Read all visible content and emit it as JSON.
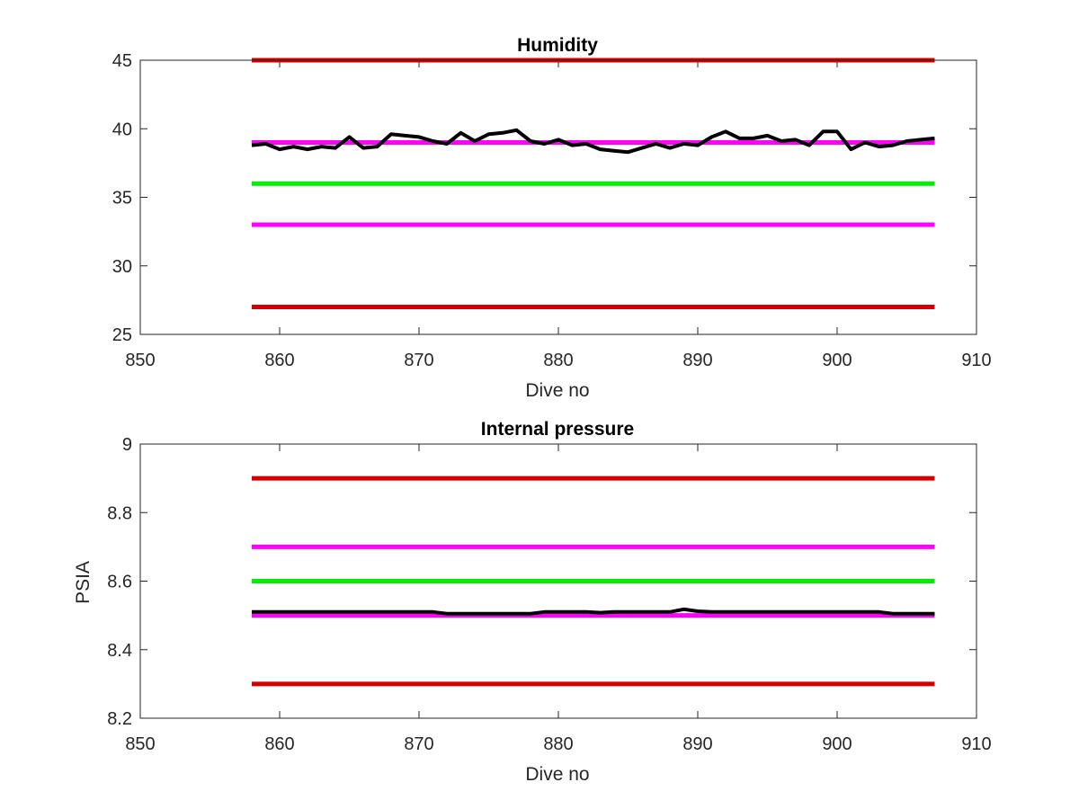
{
  "colors": {
    "limit_red": "#d40000",
    "limit_magenta": "#ff00ff",
    "target_green": "#00ee00",
    "data_black": "#000000",
    "axes": "#262626"
  },
  "chart_data": [
    {
      "type": "line",
      "title": "Humidity",
      "xlabel": "Dive no",
      "ylabel": "",
      "xlim": [
        850,
        910
      ],
      "ylim": [
        25,
        45
      ],
      "xticks": [
        850,
        860,
        870,
        880,
        890,
        900,
        910
      ],
      "yticks": [
        25,
        30,
        35,
        40,
        45
      ],
      "grid": false,
      "legend": "none",
      "reference_lines": [
        {
          "y": 45,
          "x_range": [
            858,
            907
          ],
          "color": "#d40000"
        },
        {
          "y": 39,
          "x_range": [
            858,
            907
          ],
          "color": "#ff00ff"
        },
        {
          "y": 36,
          "x_range": [
            858,
            907
          ],
          "color": "#00ee00"
        },
        {
          "y": 33,
          "x_range": [
            858,
            907
          ],
          "color": "#ff00ff"
        },
        {
          "y": 27,
          "x_range": [
            858,
            907
          ],
          "color": "#d40000"
        }
      ],
      "series": [
        {
          "color": "#000000",
          "x": [
            858,
            859,
            860,
            861,
            862,
            863,
            864,
            865,
            866,
            867,
            868,
            869,
            870,
            871,
            872,
            873,
            874,
            875,
            876,
            877,
            878,
            879,
            880,
            881,
            882,
            883,
            884,
            885,
            886,
            887,
            888,
            889,
            890,
            891,
            892,
            893,
            894,
            895,
            896,
            897,
            898,
            899,
            900,
            901,
            902,
            903,
            904,
            905,
            906,
            907
          ],
          "y": [
            38.8,
            38.9,
            38.5,
            38.7,
            38.5,
            38.7,
            38.6,
            39.4,
            38.6,
            38.7,
            39.6,
            39.5,
            39.4,
            39.1,
            38.9,
            39.7,
            39.1,
            39.6,
            39.7,
            39.9,
            39.1,
            38.9,
            39.2,
            38.8,
            38.9,
            38.5,
            38.4,
            38.3,
            38.6,
            38.9,
            38.6,
            38.9,
            38.8,
            39.4,
            39.8,
            39.3,
            39.3,
            39.5,
            39.1,
            39.2,
            38.8,
            39.8,
            39.8,
            38.5,
            39.0,
            38.7,
            38.8,
            39.1,
            39.2,
            39.3
          ]
        }
      ]
    },
    {
      "type": "line",
      "title": "Internal pressure",
      "xlabel": "Dive no",
      "ylabel": "PSIA",
      "xlim": [
        850,
        910
      ],
      "ylim": [
        8.2,
        9
      ],
      "xticks": [
        850,
        860,
        870,
        880,
        890,
        900,
        910
      ],
      "yticks": [
        "8.2",
        "8.4",
        "8.6",
        "8.8",
        "9"
      ],
      "grid": false,
      "legend": "none",
      "reference_lines": [
        {
          "y": 8.9,
          "x_range": [
            858,
            907
          ],
          "color": "#d40000"
        },
        {
          "y": 8.7,
          "x_range": [
            858,
            907
          ],
          "color": "#ff00ff"
        },
        {
          "y": 8.6,
          "x_range": [
            858,
            907
          ],
          "color": "#00ee00"
        },
        {
          "y": 8.5,
          "x_range": [
            858,
            907
          ],
          "color": "#ff00ff"
        },
        {
          "y": 8.3,
          "x_range": [
            858,
            907
          ],
          "color": "#d40000"
        }
      ],
      "series": [
        {
          "color": "#000000",
          "x": [
            858,
            859,
            860,
            861,
            862,
            863,
            864,
            865,
            866,
            867,
            868,
            869,
            870,
            871,
            872,
            873,
            874,
            875,
            876,
            877,
            878,
            879,
            880,
            881,
            882,
            883,
            884,
            885,
            886,
            887,
            888,
            889,
            890,
            891,
            892,
            893,
            894,
            895,
            896,
            897,
            898,
            899,
            900,
            901,
            902,
            903,
            904,
            905,
            906,
            907
          ],
          "y": [
            8.51,
            8.51,
            8.51,
            8.51,
            8.51,
            8.51,
            8.51,
            8.51,
            8.51,
            8.51,
            8.51,
            8.51,
            8.51,
            8.51,
            8.505,
            8.505,
            8.505,
            8.505,
            8.505,
            8.505,
            8.505,
            8.51,
            8.51,
            8.51,
            8.51,
            8.508,
            8.51,
            8.51,
            8.51,
            8.51,
            8.51,
            8.518,
            8.512,
            8.51,
            8.51,
            8.51,
            8.51,
            8.51,
            8.51,
            8.51,
            8.51,
            8.51,
            8.51,
            8.51,
            8.51,
            8.51,
            8.505,
            8.505,
            8.505,
            8.505
          ]
        }
      ]
    }
  ]
}
